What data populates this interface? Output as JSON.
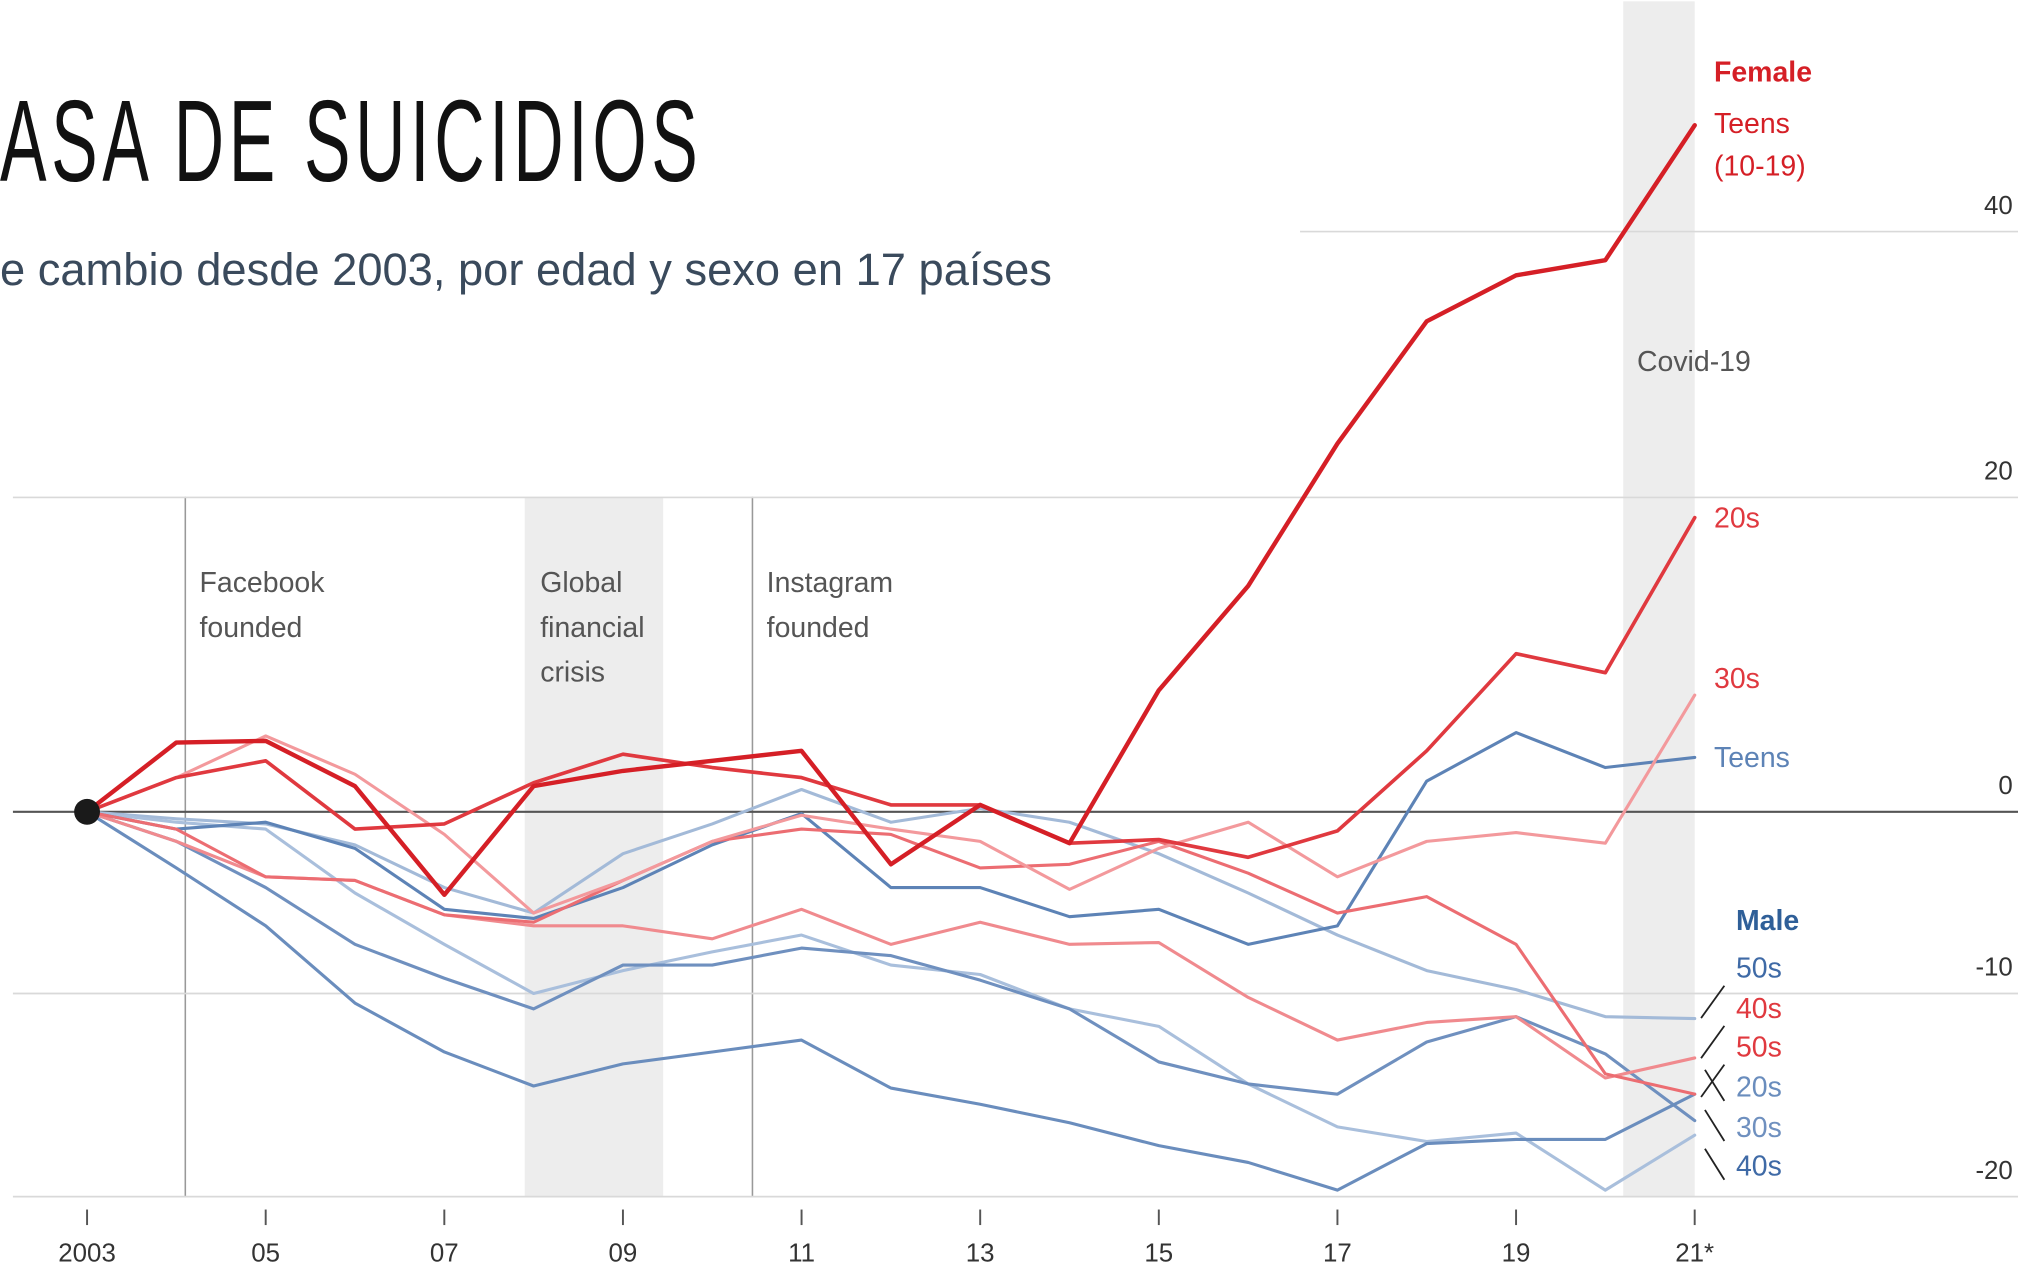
{
  "chart_data": {
    "type": "line",
    "title": "ASA DE SUICIDIOS",
    "subtitle": "e cambio desde 2003, por edad y sexo en 17 países",
    "log_scale": true,
    "x": [
      2003,
      2004,
      2005,
      2006,
      2007,
      2008,
      2009,
      2010,
      2011,
      2012,
      2013,
      2014,
      2015,
      2016,
      2017,
      2018,
      2019,
      2020,
      2021
    ],
    "xlim": [
      2002.17,
      2024.62
    ],
    "xticks": [
      2003,
      {
        "value": 2005,
        "label": "05"
      },
      {
        "value": 2007,
        "label": "07"
      },
      {
        "value": 2009,
        "label": "09"
      },
      {
        "value": 2011,
        "label": "11"
      },
      {
        "value": 2013,
        "label": "13"
      },
      {
        "value": 2015,
        "label": "15"
      },
      {
        "value": 2017,
        "label": "17"
      },
      {
        "value": 2019,
        "label": "19"
      },
      {
        "value": 2021,
        "label": "21*"
      }
    ],
    "ylim": [
      -20,
      60
    ],
    "yticks": [
      -20,
      -10,
      0,
      20,
      40
    ],
    "grid": true,
    "groups": [
      {
        "name": "Female",
        "color": "#d51f26",
        "series": [
          {
            "name": "Teens",
            "note": "(10-19)",
            "color": "#d51f26",
            "values": [
              0,
              4.1,
              4.2,
              1.5,
              -4.7,
              1.5,
              2.4,
              3.0,
              3.6,
              -3.0,
              0.4,
              -1.8,
              7.3,
              14.0,
              23.8,
              32.9,
              36.5,
              37.7,
              48.9
            ]
          },
          {
            "name": "20s",
            "color": "#e0393f",
            "values": [
              0,
              2.0,
              3.0,
              -1.0,
              -0.7,
              1.7,
              3.4,
              2.6,
              2.0,
              0.4,
              0.4,
              -1.8,
              -1.6,
              -2.6,
              -1.1,
              3.6,
              9.6,
              8.4,
              18.6
            ]
          },
          {
            "name": "30s",
            "color": "#f3999c",
            "values": [
              0,
              2.0,
              4.5,
              2.2,
              -1.3,
              -5.7,
              -3.9,
              -1.7,
              -0.2,
              -1.0,
              -1.7,
              -4.4,
              -2.1,
              -0.6,
              -3.7,
              -1.7,
              -1.2,
              -1.8,
              7.0
            ]
          },
          {
            "name": "40s",
            "color": "#ec6d72",
            "values": [
              0,
              -1.0,
              -3.7,
              -3.9,
              -5.8,
              -6.2,
              -3.9,
              -1.7,
              -1.0,
              -1.3,
              -3.2,
              -3.0,
              -1.7,
              -3.5,
              -5.7,
              -4.8,
              -7.4,
              -14.1,
              -15.1
            ]
          },
          {
            "name": "50s",
            "color": "#f08a8e",
            "values": [
              0,
              -1.7,
              -3.7,
              -3.9,
              -5.8,
              -6.4,
              -6.4,
              -7.1,
              -5.5,
              -7.4,
              -6.2,
              -7.4,
              -7.3,
              -10.2,
              -12.4,
              -11.5,
              -11.2,
              -14.3,
              -13.3
            ]
          }
        ]
      },
      {
        "name": "Male",
        "color": "#2f5f98",
        "series": [
          {
            "name": "Teens",
            "color": "#5d83b6",
            "values": [
              0,
              -1.0,
              -0.6,
              -2.1,
              -5.5,
              -6.0,
              -4.3,
              -1.9,
              -0.1,
              -4.3,
              -4.3,
              -5.9,
              -5.5,
              -7.4,
              -6.4,
              1.8,
              4.7,
              2.6,
              3.2
            ]
          },
          {
            "name": "20s",
            "color": "#6a8dbd",
            "values": [
              0,
              -3.2,
              -6.4,
              -10.5,
              -13.0,
              -14.7,
              -13.6,
              -13.0,
              -12.4,
              -14.8,
              -15.6,
              -16.5,
              -17.6,
              -18.4,
              -19.7,
              -17.5,
              -17.3,
              -17.3,
              -15.1
            ]
          },
          {
            "name": "30s",
            "color": "#6f90bf",
            "values": [
              0,
              -1.7,
              -4.3,
              -7.4,
              -9.2,
              -10.8,
              -8.5,
              -8.5,
              -7.6,
              -8.0,
              -9.3,
              -10.8,
              -13.5,
              -14.6,
              -15.1,
              -12.5,
              -11.2,
              -13.1,
              -16.4
            ]
          },
          {
            "name": "40s",
            "color": "#a9bfdc",
            "values": [
              0,
              -0.6,
              -1.0,
              -4.6,
              -7.4,
              -10.0,
              -8.8,
              -7.8,
              -6.9,
              -8.5,
              -9.0,
              -10.8,
              -11.7,
              -14.6,
              -16.7,
              -17.4,
              -17.0,
              -19.7,
              -17.1
            ]
          },
          {
            "name": "50s",
            "color": "#a3bad8",
            "values": [
              0,
              -0.4,
              -0.7,
              -1.9,
              -4.3,
              -5.7,
              -2.4,
              -0.7,
              1.3,
              -0.6,
              0.2,
              -0.6,
              -2.4,
              -4.6,
              -6.9,
              -8.8,
              -9.8,
              -11.2,
              -11.3
            ]
          }
        ]
      }
    ],
    "annotations": [
      {
        "lines": [
          "Facebook",
          "founded"
        ],
        "x": 2004.1
      },
      {
        "lines": [
          "Global",
          "financial",
          "crisis"
        ],
        "span": [
          2007.9,
          2009.45
        ]
      },
      {
        "lines": [
          "Instagram",
          "founded"
        ],
        "x": 2010.45
      },
      {
        "lines": [
          "Covid-19"
        ],
        "span": [
          2020.2,
          2021
        ]
      }
    ]
  }
}
